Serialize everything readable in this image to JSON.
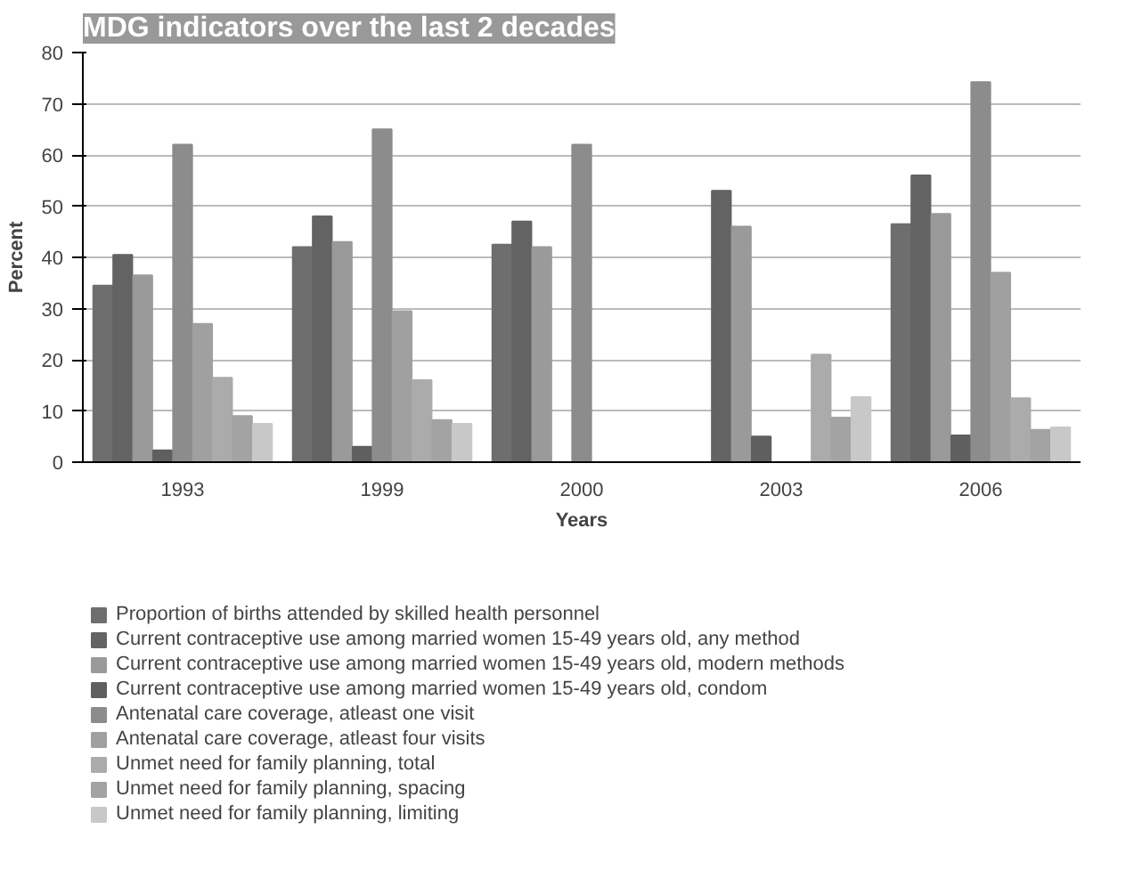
{
  "chart_data": {
    "type": "bar",
    "title": "MDG indicators over the last 2 decades",
    "xlabel": "Years",
    "ylabel": "Percent",
    "categories": [
      "1993",
      "1999",
      "2000",
      "2003",
      "2006"
    ],
    "series": [
      {
        "name": "Proportion of births attended by skilled health personnel",
        "color": "#6e6e6e",
        "values": [
          34.5,
          42,
          42.5,
          null,
          46.5
        ]
      },
      {
        "name": "Current contraceptive use among married women 15-49 years old, any method",
        "color": "#636363",
        "values": [
          40.5,
          48,
          47,
          53,
          56
        ]
      },
      {
        "name": "Current contraceptive use among married women 15-49 years old, modern methods",
        "color": "#9a9a9a",
        "values": [
          36.5,
          43,
          42,
          46,
          48.5
        ]
      },
      {
        "name": "Current contraceptive use among married women 15-49 years old, condom",
        "color": "#5f5f5f",
        "values": [
          2.3,
          3,
          null,
          5,
          5.2
        ]
      },
      {
        "name": "Antenatal care coverage, atleast one visit",
        "color": "#8c8c8c",
        "values": [
          62,
          65,
          62,
          null,
          74.2
        ]
      },
      {
        "name": "Antenatal care coverage, atleast four visits",
        "color": "#a0a0a0",
        "values": [
          27,
          29.5,
          null,
          null,
          37
        ]
      },
      {
        "name": "Unmet need for family planning, total",
        "color": "#ababab",
        "values": [
          16.5,
          16,
          null,
          21,
          12.5
        ]
      },
      {
        "name": "Unmet need for family planning, spacing",
        "color": "#a3a3a3",
        "values": [
          9,
          8.2,
          null,
          8.7,
          6.3
        ]
      },
      {
        "name": "Unmet need for family planning, limiting",
        "color": "#c8c8c8",
        "values": [
          7.5,
          7.5,
          null,
          12.7,
          6.8
        ]
      }
    ],
    "ylim": [
      0,
      80
    ],
    "yticks": [
      0,
      10,
      20,
      30,
      40,
      50,
      60,
      70,
      80
    ],
    "grid": "y",
    "legend": "bottom"
  }
}
